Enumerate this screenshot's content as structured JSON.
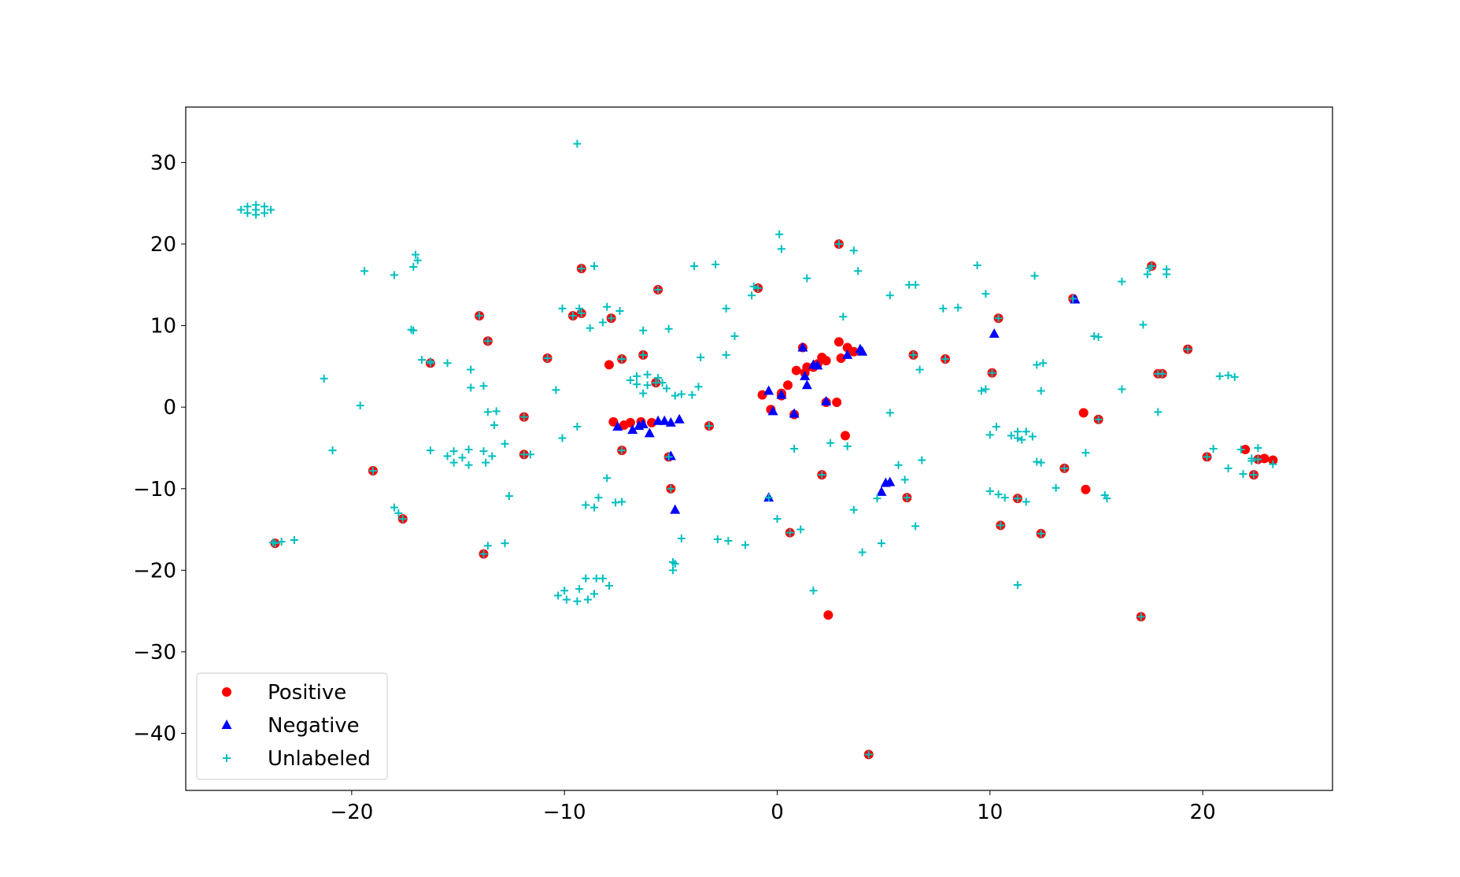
{
  "chart_data": {
    "type": "scatter",
    "xlim": [
      -27.8,
      26.1
    ],
    "ylim": [
      -47,
      36.8
    ],
    "xticks": [
      {
        "value": -20,
        "label": "−20"
      },
      {
        "value": -10,
        "label": "−10"
      },
      0,
      10,
      20
    ],
    "yticks": [
      {
        "value": -40,
        "label": "−40"
      },
      {
        "value": -30,
        "label": "−30"
      },
      {
        "value": -20,
        "label": "−20"
      },
      {
        "value": -10,
        "label": "−10"
      },
      0,
      10,
      20,
      30
    ],
    "grid": false,
    "legend": "lower left",
    "series": [
      {
        "name": "Positive",
        "color": "#ff0000",
        "marker": "circle",
        "x": [
          -7.9,
          -7.3,
          -7.7,
          -7.2,
          -6.9,
          -6.4,
          -5.9,
          -7.3,
          -5.1,
          -5.0,
          -3.2,
          -5.7,
          -6.3,
          -5.6,
          -9.2,
          -9.6,
          -9.2,
          -7.8,
          -10.8,
          -14.0,
          -13.6,
          -16.3,
          -11.9,
          -11.9,
          -19.0,
          -17.6,
          -23.6,
          -13.8,
          -0.9,
          -0.7,
          -0.3,
          0.2,
          0.2,
          0.5,
          0.9,
          1.2,
          1.3,
          1.4,
          1.7,
          1.9,
          2.1,
          2.3,
          2.9,
          3.0,
          3.3,
          3.6,
          0.8,
          2.3,
          2.8,
          2.1,
          3.2,
          0.6,
          2.4,
          2.9,
          4.3,
          6.4,
          6.1,
          7.9,
          10.1,
          10.4,
          10.5,
          11.3,
          12.4,
          13.5,
          13.9,
          14.4,
          14.5,
          15.1,
          17.6,
          17.9,
          18.1,
          19.3,
          20.2,
          22.0,
          22.4,
          22.6,
          22.9,
          23.3,
          17.1
        ],
        "values": [
          5.2,
          5.9,
          -1.8,
          -2.2,
          -1.9,
          -1.8,
          -1.9,
          -5.3,
          -6.1,
          -10,
          -2.3,
          3.0,
          6.4,
          14.4,
          17,
          11.2,
          11.5,
          10.9,
          6.0,
          11.2,
          8.1,
          5.4,
          -1.2,
          -5.8,
          -7.8,
          -13.7,
          -16.7,
          -18,
          14.6,
          1.5,
          -0.3,
          1.4,
          1.7,
          2.7,
          4.5,
          7.3,
          4.2,
          4.9,
          4.9,
          5.3,
          6.1,
          5.7,
          8.0,
          6.0,
          7.3,
          6.8,
          -0.9,
          0.6,
          0.6,
          -8.3,
          -3.5,
          -15.4,
          -25.5,
          20.0,
          -42.6,
          6.4,
          -11.1,
          5.9,
          4.2,
          10.9,
          -14.5,
          -11.2,
          -15.5,
          -7.5,
          13.3,
          -0.7,
          -10.1,
          -1.5,
          17.3,
          4.1,
          4.1,
          7.1,
          -6.1,
          -5.2,
          -8.3,
          -6.4,
          -6.3,
          -6.5,
          -25.7
        ]
      },
      {
        "name": "Negative",
        "color": "#0000ff",
        "marker": "triangle",
        "x": [
          -7.5,
          -6.8,
          -6.5,
          -6.3,
          -6.0,
          -5.6,
          -5.3,
          -5.0,
          -4.6,
          -5.0,
          -4.8,
          -0.4,
          -0.2,
          -0.4,
          0.2,
          0.8,
          1.2,
          1.3,
          1.4,
          1.7,
          1.9,
          2.3,
          3.3,
          3.9,
          4.0,
          4.9,
          5.1,
          5.3,
          10.2,
          14.0
        ],
        "values": [
          -2.4,
          -2.8,
          -2.3,
          -2.1,
          -3.2,
          -1.7,
          -1.7,
          -1.9,
          -1.5,
          -6.0,
          -12.6,
          2.0,
          -0.5,
          -11.1,
          1.5,
          -0.8,
          7.3,
          3.8,
          2.7,
          5.2,
          5.1,
          0.7,
          6.4,
          7.1,
          6.8,
          -10.4,
          -9.3,
          -9.2,
          9.0,
          13.2
        ]
      },
      {
        "name": "Unlabeled",
        "color": "#00bfbf",
        "marker": "plus",
        "x": [
          -25.2,
          -24.9,
          -24.5,
          -24.1,
          -23.8,
          -24.1,
          -24.5,
          -24.9,
          -24.5,
          -9.4,
          -19.4,
          -18.0,
          -17.0,
          -16.9,
          -17.1,
          -17.2,
          -17.1,
          -16.7,
          -16.3,
          -15.5,
          -21.3,
          -19.6,
          -20.9,
          -16.3,
          -18.0,
          -17.8,
          -23.7,
          -23.3,
          -22.7,
          -13.8,
          -13.6,
          -15.5,
          -15.2,
          -14.5,
          -13.8,
          -13.4,
          -13.7,
          -14.5,
          -15.2,
          -14.8,
          -14.4,
          -14.4,
          -13.8,
          -13.6,
          -13.2,
          -13.3,
          -12.8,
          -12.6,
          -12.8,
          -11.6,
          -10.4,
          -10.1,
          -9.4,
          -10.1,
          -9.3,
          -8.6,
          -8.8,
          -8.2,
          -8.0,
          -7.4,
          -8.0,
          -9.0,
          -8.6,
          -8.4,
          -7.6,
          -7.3,
          -6.3,
          -5.1,
          -6.9,
          -6.6,
          -6.1,
          -5.6,
          -5.4,
          -6.1,
          -6.6,
          -6.3,
          -5.2,
          -4.8,
          -4.5,
          -4.0,
          -3.7,
          -3.6,
          -3.9,
          -2.9,
          -2.4,
          -2.0,
          -2.4,
          -10.3,
          -9.9,
          -9.4,
          -8.9,
          -8.6,
          -9.3,
          -10.0,
          -9.0,
          -8.5,
          -8.2,
          -7.9,
          -4.9,
          -4.9,
          -4.8,
          -4.5,
          -2.8,
          -2.3,
          -1.5,
          -1.1,
          -1.2,
          0.1,
          0.2,
          1.4,
          1.7,
          0,
          0.8,
          1.1,
          2.5,
          3.1,
          3.6,
          3.8,
          3.3,
          3.6,
          4.0,
          4.7,
          4.9,
          5.3,
          5.3,
          5.7,
          6.0,
          6.2,
          6.5,
          6.5,
          6.7,
          6.8,
          7.8,
          8.5,
          9.4,
          9.8,
          9.6,
          9.8,
          10.0,
          10.3,
          10.0,
          10.4,
          10.7,
          11.0,
          11.3,
          11.7,
          12.0,
          11.5,
          11.3,
          11.3,
          11.7,
          12.1,
          12.2,
          12.5,
          12.2,
          12.4,
          12.4,
          13.1,
          14.5,
          14.9,
          15.1,
          15.4,
          15.5,
          16.2,
          16.2,
          17.2,
          17.4,
          17.5,
          18.3,
          18.3,
          17.9,
          20.5,
          20.8,
          21.2,
          21.5,
          21.2,
          21.9,
          21.8,
          22.6,
          23.3,
          22.3,
          22.3,
          -7.3,
          -7.3,
          -5.1,
          -5.0,
          -3.2,
          -5.7,
          -6.3,
          -5.6,
          -9.2,
          -9.6,
          -9.2,
          -7.8,
          -10.8,
          -14.0,
          -13.6,
          -16.3,
          -11.9,
          -11.9,
          -19.0,
          -17.6,
          -23.6,
          -0.9,
          0.6,
          2.1,
          2.9,
          4.3,
          6.4,
          6.1,
          7.9,
          10.1,
          10.4,
          10.5,
          11.3,
          12.4,
          13.5,
          13.9,
          15.1,
          17.6,
          17.9,
          18.1,
          19.3,
          20.2,
          22.4,
          22.6,
          17.1,
          -0.4
        ],
        "values": [
          24.2,
          24.6,
          24.8,
          24.6,
          24.2,
          23.8,
          23.6,
          23.8,
          24.2,
          32.3,
          16.7,
          16.2,
          18.7,
          18.0,
          17.2,
          9.5,
          9.4,
          5.8,
          5.6,
          5.4,
          3.5,
          0.2,
          -5.3,
          -5.3,
          -12.3,
          -13.0,
          -16.6,
          -16.5,
          -16.3,
          -18,
          -17,
          -6.0,
          -5.4,
          -5.2,
          -5.4,
          -6.0,
          -6.8,
          -7.1,
          -6.8,
          -6.2,
          4.6,
          2.4,
          2.6,
          -0.6,
          -0.5,
          -2.2,
          -4.5,
          -10.9,
          -16.7,
          -5.8,
          2.1,
          -3.8,
          -2.4,
          12.1,
          12.1,
          17.3,
          9.7,
          10.4,
          12.3,
          11.8,
          -8.7,
          -12,
          -12.3,
          -11.1,
          -11.7,
          -11.6,
          9.4,
          9.6,
          3.3,
          3.8,
          4.0,
          3.6,
          3.0,
          2.7,
          2.8,
          1.7,
          2.3,
          1.4,
          1.6,
          1.5,
          2.5,
          6.1,
          17.3,
          17.5,
          12.1,
          8.7,
          6.4,
          -23.1,
          -23.6,
          -23.8,
          -23.6,
          -22.9,
          -22.3,
          -22.5,
          -21,
          -21,
          -21,
          -21.9,
          -20,
          -19,
          -19.2,
          -16.1,
          -16.2,
          -16.4,
          -16.9,
          14.8,
          13.7,
          21.2,
          19.4,
          15.8,
          -22.5,
          -13.7,
          -5.1,
          -15.0,
          -4.4,
          11.1,
          19.2,
          16.7,
          -4.8,
          -12.6,
          -17.8,
          -11.2,
          -16.7,
          13.7,
          -0.7,
          -7.1,
          -8.9,
          15.0,
          15.0,
          -14.6,
          4.6,
          -6.5,
          12.1,
          12.2,
          17.4,
          13.9,
          2.0,
          2.2,
          -3.4,
          -2.4,
          -10.3,
          -10.7,
          -11.1,
          -3.5,
          -3.0,
          -3.0,
          -3.6,
          -4.0,
          -3.8,
          -21.8,
          -11.6,
          16.1,
          5.2,
          5.4,
          -6.7,
          -6.8,
          2.0,
          -9.9,
          -5.6,
          8.7,
          8.6,
          -10.8,
          -11.2,
          15.4,
          2.2,
          10.1,
          16.3,
          17,
          16.9,
          16.3,
          -0.6,
          -5.1,
          3.8,
          3.9,
          3.7,
          -7.5,
          -8.2,
          -5.2,
          -5.0,
          -7.0,
          -6.6,
          -6.3,
          5.9,
          -5.3,
          -6.1,
          -10,
          -2.3,
          3.0,
          6.4,
          14.4,
          17,
          11.2,
          11.5,
          10.9,
          6.0,
          11.2,
          8.1,
          5.4,
          -1.2,
          -5.8,
          -7.8,
          -13.7,
          -16.7,
          14.6,
          -15.4,
          -8.3,
          20.0,
          -42.6,
          6.4,
          -11.1,
          5.9,
          4.2,
          10.9,
          -14.5,
          -11.2,
          -15.5,
          -7.5,
          13.3,
          -1.5,
          17.3,
          4.1,
          4.1,
          7.1,
          -6.1,
          -8.3,
          -6.4,
          -25.7,
          -11.1
        ]
      }
    ]
  }
}
